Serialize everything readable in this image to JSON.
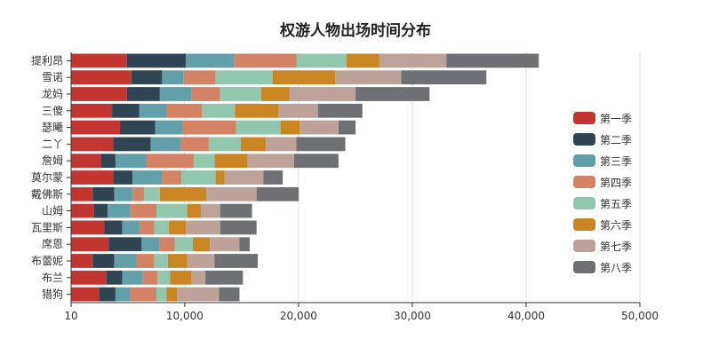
{
  "chart_data": {
    "type": "bar",
    "orientation": "horizontal",
    "stacked": true,
    "title": "权游人物出场时间分布",
    "categories": [
      "提利昂",
      "雪诺",
      "龙妈",
      "三傻",
      "瑟曦",
      "二丫",
      "詹姆",
      "莫尔蒙",
      "戴佛斯",
      "山姆",
      "瓦里斯",
      "席恩",
      "布蕾妮",
      "布兰",
      "猎狗"
    ],
    "series": [
      {
        "name": "第一季",
        "color": "#c23531",
        "values": [
          4900,
          5300,
          4900,
          3600,
          4300,
          3700,
          2600,
          3700,
          1900,
          2000,
          2900,
          3300,
          1900,
          3100,
          2500
        ]
      },
      {
        "name": "第二季",
        "color": "#2f4554",
        "values": [
          5200,
          2700,
          2900,
          2400,
          3100,
          3300,
          1300,
          1700,
          1900,
          1200,
          1600,
          2900,
          1900,
          1400,
          1400
        ]
      },
      {
        "name": "第三季",
        "color": "#61a0a8",
        "values": [
          4200,
          1900,
          2800,
          2400,
          2400,
          2600,
          2700,
          2600,
          1600,
          2000,
          1500,
          1600,
          1900,
          1800,
          1300
        ]
      },
      {
        "name": "第四季",
        "color": "#d48265",
        "values": [
          5500,
          2800,
          2500,
          3100,
          4700,
          2500,
          4200,
          1700,
          1000,
          2300,
          1300,
          1300,
          1600,
          1300,
          2300
        ]
      },
      {
        "name": "第五季",
        "color": "#91c7ae",
        "values": [
          4400,
          5000,
          3600,
          2900,
          3900,
          2800,
          1800,
          3000,
          1400,
          2700,
          1300,
          1600,
          1200,
          1100,
          900
        ]
      },
      {
        "name": "第六季",
        "color": "#ca8622",
        "values": [
          2900,
          5500,
          2500,
          3800,
          1700,
          2200,
          2900,
          800,
          4100,
          1200,
          1500,
          1500,
          1700,
          1900,
          900
        ]
      },
      {
        "name": "第七季",
        "color": "#bda29a",
        "values": [
          5900,
          5800,
          5800,
          3500,
          3400,
          2700,
          4100,
          3400,
          4400,
          1700,
          3000,
          2600,
          2400,
          1200,
          3700
        ]
      },
      {
        "name": "第八季",
        "color": "#6e7074",
        "values": [
          8100,
          7500,
          6500,
          3900,
          1500,
          4300,
          3900,
          1700,
          3700,
          2800,
          3200,
          900,
          3800,
          3300,
          1800
        ]
      }
    ],
    "xaxis": {
      "ticks": [
        "10",
        "10,000",
        "20,000",
        "30,000",
        "40,000",
        "50,000"
      ],
      "range": [
        10,
        50000
      ]
    },
    "grid": true,
    "legend_position": "right"
  }
}
